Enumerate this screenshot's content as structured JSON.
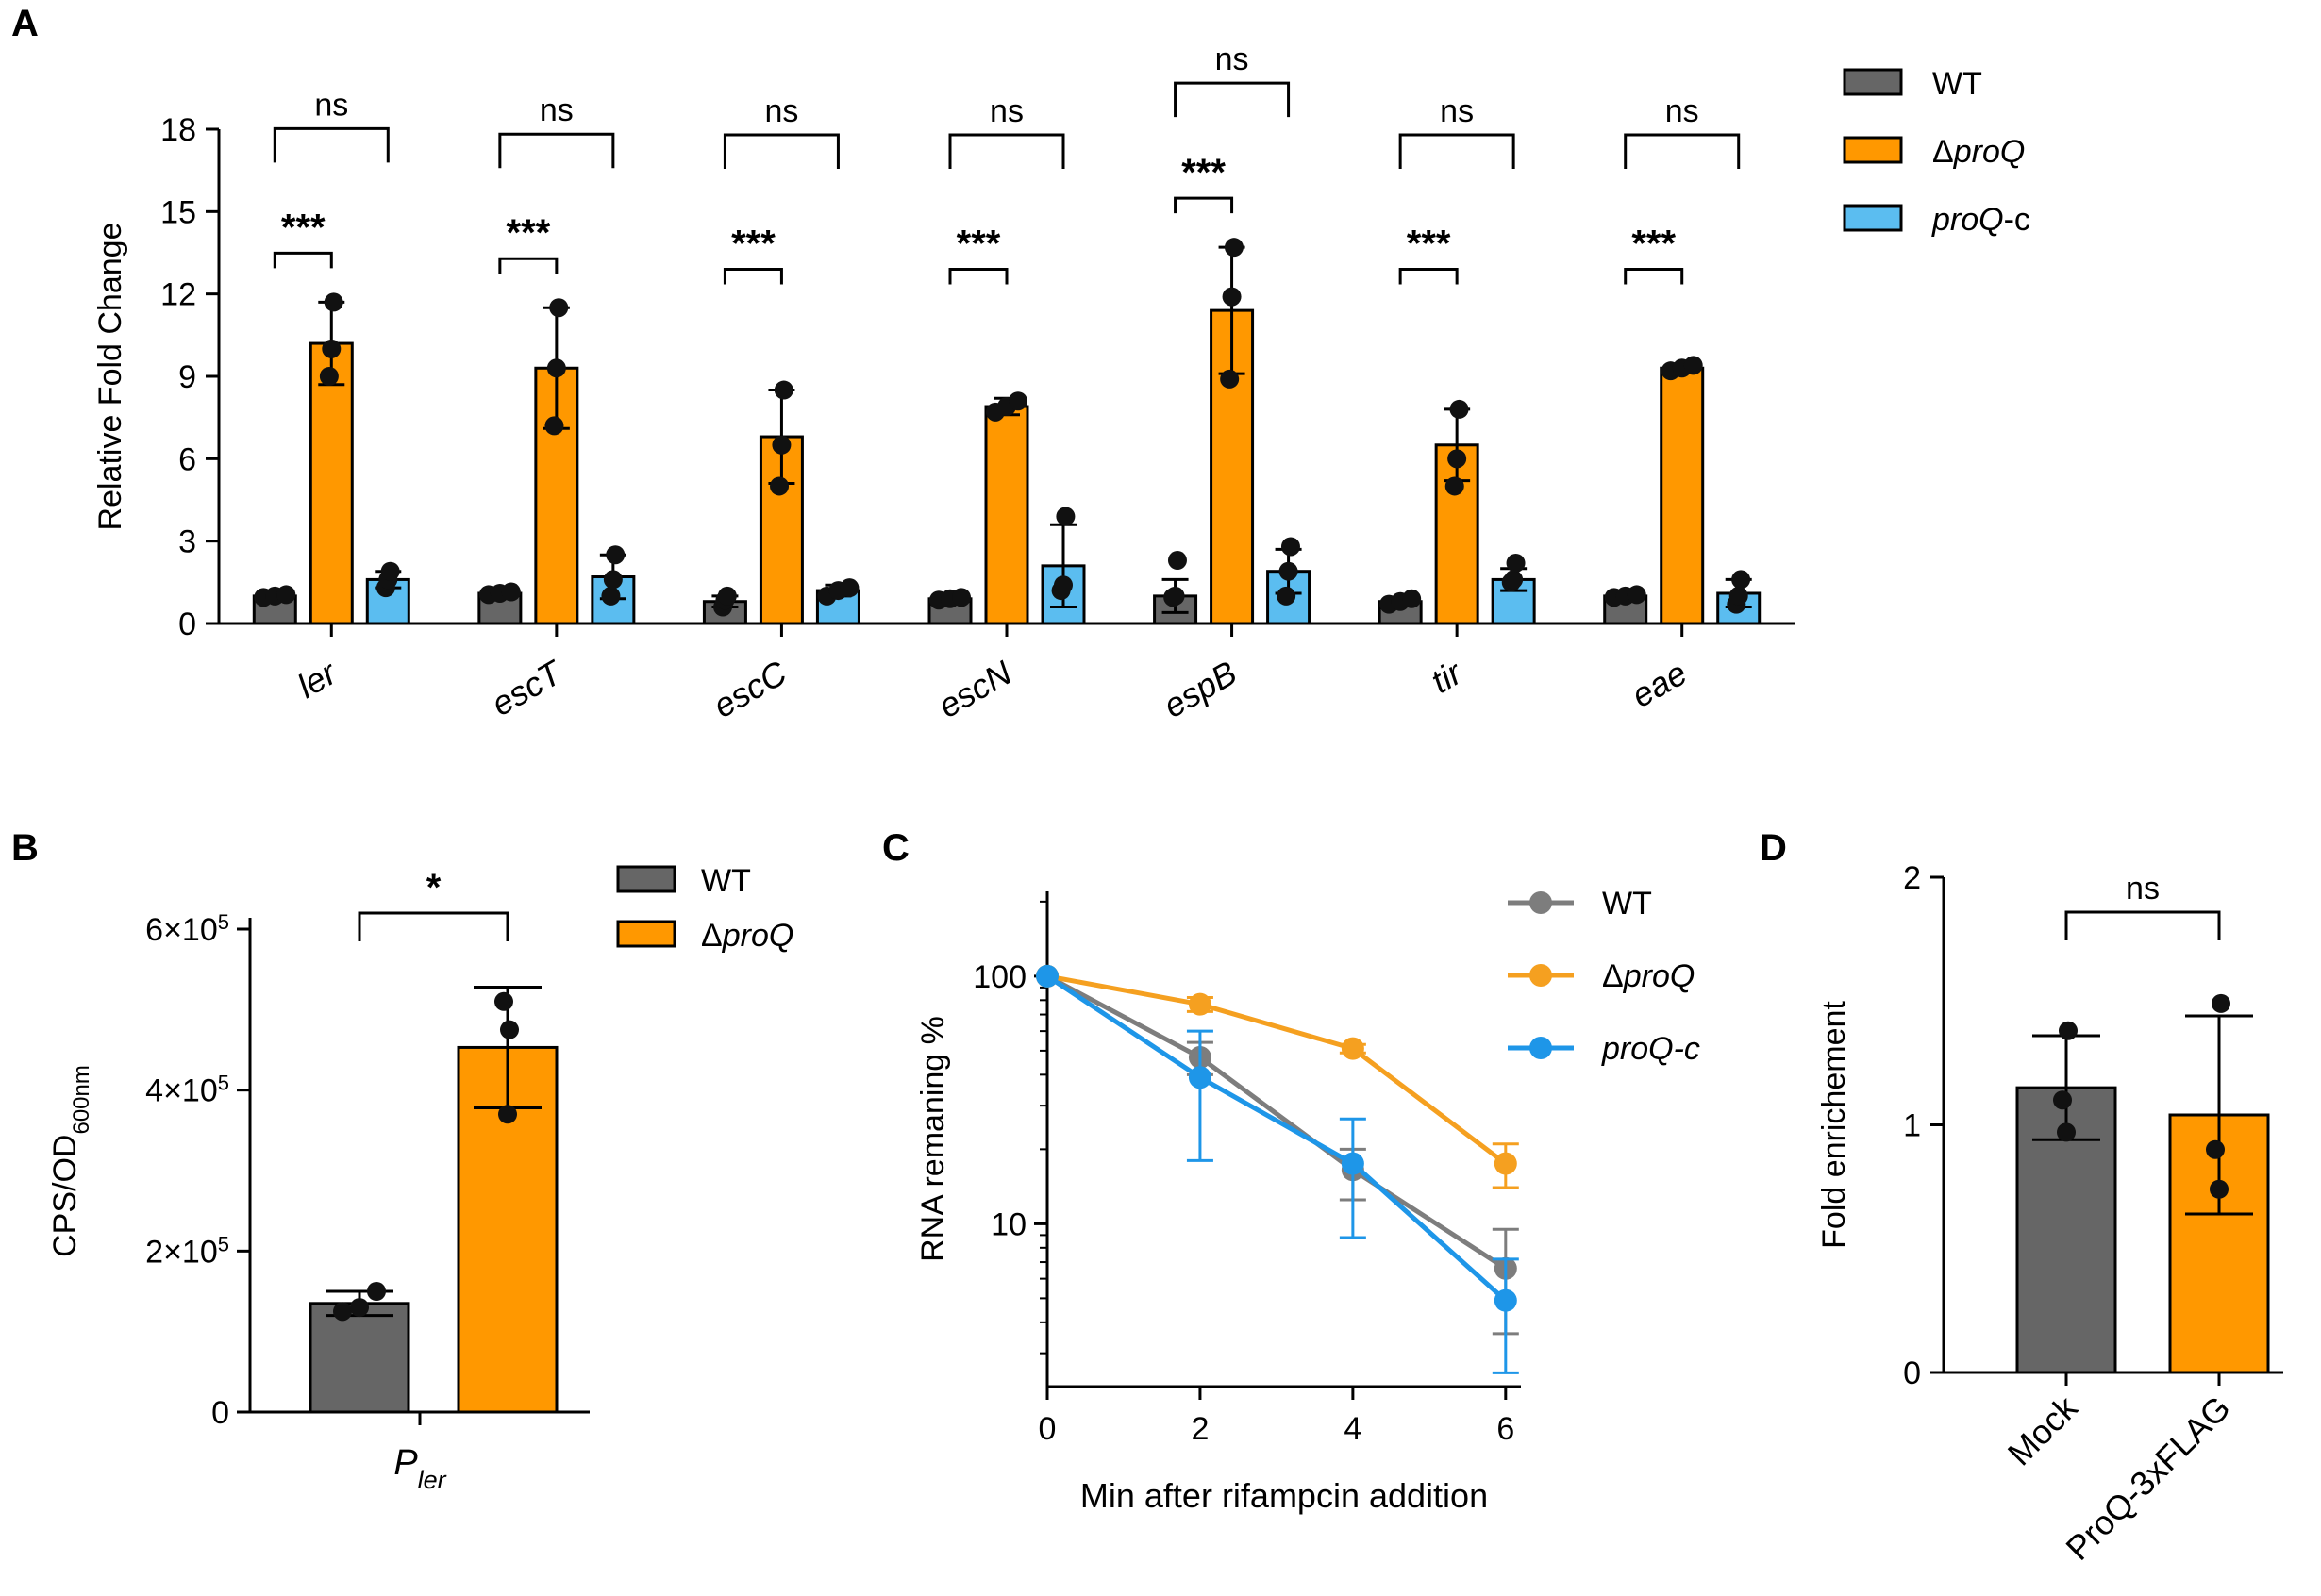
{
  "colors": {
    "wt": "#666666",
    "proq": "#FF9800",
    "proqc": "#5BBDF0",
    "wt_line": "#7D7D7D",
    "proq_line": "#F5A020",
    "proqc_line": "#1E96E8"
  },
  "chart_data": [
    {
      "panel": "A",
      "type": "bar",
      "ylabel": "Relative Fold Change",
      "ylim": [
        0,
        18
      ],
      "yticks": [
        0,
        3,
        6,
        9,
        12,
        15,
        18
      ],
      "categories": [
        "ler",
        "escT",
        "escC",
        "escN",
        "espB",
        "tir",
        "eae"
      ],
      "series": [
        {
          "name": "WT",
          "key": "wt",
          "values": [
            1.0,
            1.1,
            0.8,
            0.9,
            1.0,
            0.8,
            1.0
          ],
          "err": [
            0.1,
            0.1,
            0.2,
            0.1,
            0.6,
            0.1,
            0.1
          ],
          "points": [
            [
              0.95,
              1.0,
              1.05
            ],
            [
              1.05,
              1.1,
              1.15
            ],
            [
              0.6,
              0.85,
              1.0
            ],
            [
              0.85,
              0.9,
              0.95
            ],
            [
              0.95,
              1.0,
              2.3
            ],
            [
              0.7,
              0.8,
              0.9
            ],
            [
              0.95,
              1.0,
              1.05
            ]
          ]
        },
        {
          "name": "ΔproQ",
          "key": "proq",
          "values": [
            10.2,
            9.3,
            6.8,
            7.9,
            11.4,
            6.5,
            9.3
          ],
          "err": [
            1.5,
            2.2,
            1.7,
            0.3,
            2.3,
            1.3,
            0.1
          ],
          "points": [
            [
              9.0,
              10.0,
              11.7
            ],
            [
              7.2,
              9.3,
              11.5
            ],
            [
              5.0,
              6.5,
              8.5
            ],
            [
              7.7,
              7.9,
              8.1
            ],
            [
              8.9,
              11.9,
              13.7
            ],
            [
              5.0,
              6.0,
              7.8
            ],
            [
              9.2,
              9.3,
              9.4
            ]
          ]
        },
        {
          "name": "proQ-c",
          "key": "proqc",
          "values": [
            1.6,
            1.7,
            1.2,
            2.1,
            1.9,
            1.6,
            1.1
          ],
          "err": [
            0.3,
            0.8,
            0.2,
            1.5,
            0.8,
            0.4,
            0.5
          ],
          "points": [
            [
              1.3,
              1.6,
              1.9
            ],
            [
              1.0,
              1.6,
              2.5
            ],
            [
              1.0,
              1.2,
              1.3
            ],
            [
              1.2,
              1.4,
              3.9
            ],
            [
              1.0,
              1.9,
              2.8
            ],
            [
              1.5,
              1.6,
              2.2
            ],
            [
              0.7,
              1.0,
              1.6
            ]
          ]
        }
      ],
      "legend": {
        "entries": [
          {
            "prefix": "",
            "italic": "",
            "plain": "WT"
          },
          {
            "prefix": "Δ",
            "italic": "proQ",
            "plain": ""
          },
          {
            "prefix": "",
            "italic": "proQ",
            "plain": "-c"
          }
        ]
      },
      "sig_labels": {
        "proq_vs_wt": [
          "***",
          "***",
          "***",
          "***",
          "***",
          "***",
          "***"
        ],
        "wt_vs_proqc": [
          "ns",
          "ns",
          "ns",
          "ns",
          "ns",
          "ns",
          "ns"
        ]
      }
    },
    {
      "panel": "B",
      "type": "bar",
      "ylabel": "CPS/OD",
      "ylabel_sub": "600nm",
      "ylim": [
        0,
        600000
      ],
      "yticks": [
        {
          "v": 0,
          "base": "0",
          "exp": ""
        },
        {
          "v": 200000,
          "base": "2×10",
          "exp": "5"
        },
        {
          "v": 400000,
          "base": "4×10",
          "exp": "5"
        },
        {
          "v": 600000,
          "base": "6×10",
          "exp": "5"
        }
      ],
      "category": {
        "base": "P",
        "sub": "ler"
      },
      "series": [
        {
          "name": "WT",
          "key": "wt",
          "value": 135000,
          "err": 15000,
          "points": [
            125000,
            130000,
            150000
          ]
        },
        {
          "name": "ΔproQ",
          "key": "proq",
          "value": 453000,
          "err": 75000,
          "points": [
            370000,
            475000,
            510000
          ]
        }
      ],
      "legend": {
        "entries": [
          {
            "prefix": "",
            "italic": "",
            "plain": "WT"
          },
          {
            "prefix": "Δ",
            "italic": "proQ",
            "plain": ""
          }
        ]
      },
      "sig_label": "*"
    },
    {
      "panel": "C",
      "type": "line",
      "yscale": "log",
      "ylabel": "RNA remaning %",
      "xlabel": "Min after rifampcin addition",
      "x": [
        0,
        2,
        4,
        6
      ],
      "xlim": [
        0,
        6.2
      ],
      "ylim": [
        2.2,
        220
      ],
      "yticks": [
        10,
        100
      ],
      "series": [
        {
          "name": "WT",
          "key": "wt_line",
          "values": [
            100,
            47,
            16.5,
            6.6
          ],
          "err_low": [
            100,
            40,
            12.5,
            3.6
          ],
          "err_high": [
            100,
            54,
            20,
            9.5
          ]
        },
        {
          "name": "ΔproQ",
          "key": "proq_line",
          "values": [
            100,
            77,
            51,
            17.5
          ],
          "err_low": [
            100,
            72,
            49,
            14
          ],
          "err_high": [
            100,
            82,
            53,
            21
          ]
        },
        {
          "name": "proQ-c",
          "key": "proqc_line",
          "values": [
            100,
            39,
            17.5,
            4.9
          ],
          "err_low": [
            100,
            18,
            8.8,
            2.5
          ],
          "err_high": [
            100,
            60,
            26.5,
            7.2
          ]
        }
      ],
      "legend": {
        "entries": [
          {
            "prefix": "",
            "italic": "",
            "plain": "WT"
          },
          {
            "prefix": "Δ",
            "italic": "proQ",
            "plain": ""
          },
          {
            "prefix": "",
            "italic": "proQ-c",
            "plain": ""
          }
        ]
      }
    },
    {
      "panel": "D",
      "type": "bar",
      "ylabel": "Fold enrichement",
      "ylim": [
        0,
        2
      ],
      "yticks": [
        0,
        1,
        2
      ],
      "categories": [
        "Mock",
        "ProQ-3xFLAG"
      ],
      "series": [
        {
          "name": "Mock",
          "key": "wt",
          "value": 1.15,
          "err": 0.21,
          "points": [
            0.97,
            1.1,
            1.38
          ]
        },
        {
          "name": "ProQ-3xFLAG",
          "key": "proq",
          "value": 1.04,
          "err": 0.4,
          "points": [
            0.74,
            0.9,
            1.49
          ]
        }
      ],
      "sig_label": "ns"
    }
  ],
  "panel_labels": [
    "A",
    "B",
    "C",
    "D"
  ]
}
